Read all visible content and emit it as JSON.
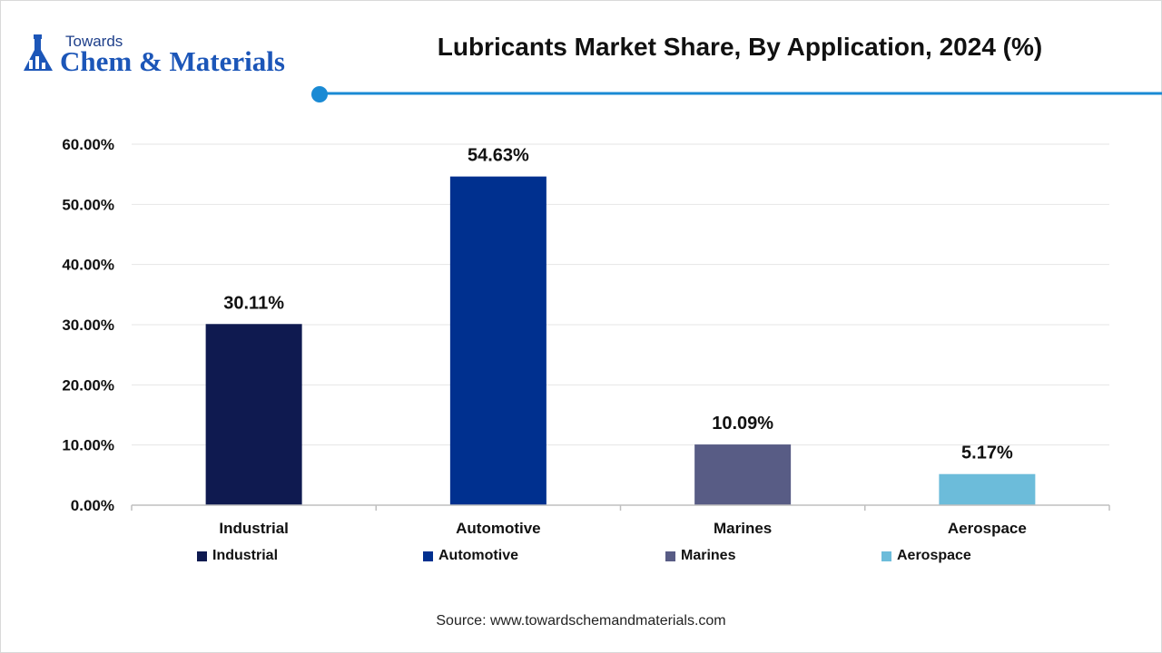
{
  "logo": {
    "top_text": "Towards",
    "main_text": "Chem & Materials",
    "icon": "flask-chart-icon"
  },
  "title": "Lubricants Market Share, By Application, 2024 (%)",
  "source": "Source: www.towardschemandmaterials.com",
  "colors": {
    "accent_line": "#1a8ad4",
    "grid": "#e6e6e6",
    "axis": "#bfbfbf"
  },
  "chart_data": {
    "type": "bar",
    "categories": [
      "Industrial",
      "Automotive",
      "Marines",
      "Aerospace"
    ],
    "values": [
      30.11,
      54.63,
      10.09,
      5.17
    ],
    "value_labels": [
      "30.11%",
      "54.63%",
      "10.09%",
      "5.17%"
    ],
    "colors": [
      "#0f1a50",
      "#00308f",
      "#585c85",
      "#6cbcda"
    ],
    "ylim": [
      0,
      60
    ],
    "yticks": [
      0,
      10,
      20,
      30,
      40,
      50,
      60
    ],
    "ytick_labels": [
      "0.00%",
      "10.00%",
      "20.00%",
      "30.00%",
      "40.00%",
      "50.00%",
      "60.00%"
    ],
    "grid": true,
    "legend": {
      "position": "bottom",
      "entries": [
        "Industrial",
        "Automotive",
        "Marines",
        "Aerospace"
      ]
    }
  }
}
